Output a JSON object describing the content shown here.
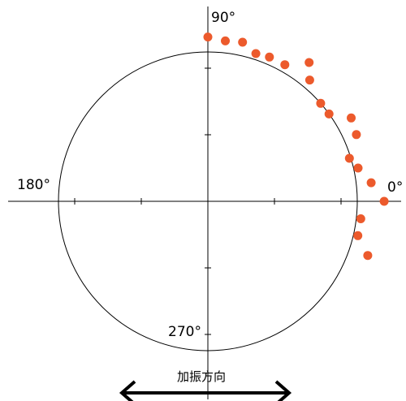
{
  "chart_data": {
    "type": "scatter",
    "projection": "polar",
    "angle_labels": {
      "a0": "0°",
      "a90": "90°",
      "a180": "180°",
      "a270": "270°"
    },
    "arrow_label": "加振方向",
    "reference_circle_radius": 1.0,
    "radial_range": [
      0,
      1.12
    ],
    "grid": false,
    "points": [
      {
        "theta_deg": 90.0,
        "r": 1.1
      },
      {
        "theta_deg": 83.8,
        "r": 1.08
      },
      {
        "theta_deg": 77.7,
        "r": 1.09
      },
      {
        "theta_deg": 72.0,
        "r": 1.04
      },
      {
        "theta_deg": 66.9,
        "r": 1.05
      },
      {
        "theta_deg": 60.6,
        "r": 1.05
      },
      {
        "theta_deg": 53.9,
        "r": 1.15
      },
      {
        "theta_deg": 50.0,
        "r": 1.06
      },
      {
        "theta_deg": 41.0,
        "r": 1.0
      },
      {
        "theta_deg": 35.8,
        "r": 1.0
      },
      {
        "theta_deg": 30.2,
        "r": 1.11
      },
      {
        "theta_deg": 24.2,
        "r": 1.09
      },
      {
        "theta_deg": 16.9,
        "r": 0.99
      },
      {
        "theta_deg": 12.5,
        "r": 1.03
      },
      {
        "theta_deg": 6.5,
        "r": 1.1
      },
      {
        "theta_deg": 0.0,
        "r": 1.18
      },
      {
        "theta_deg": -6.5,
        "r": 1.03
      },
      {
        "theta_deg": -12.9,
        "r": 1.03
      },
      {
        "theta_deg": -18.7,
        "r": 1.13
      }
    ],
    "point_color": "#ec5a2c",
    "line_color": "#000000"
  }
}
